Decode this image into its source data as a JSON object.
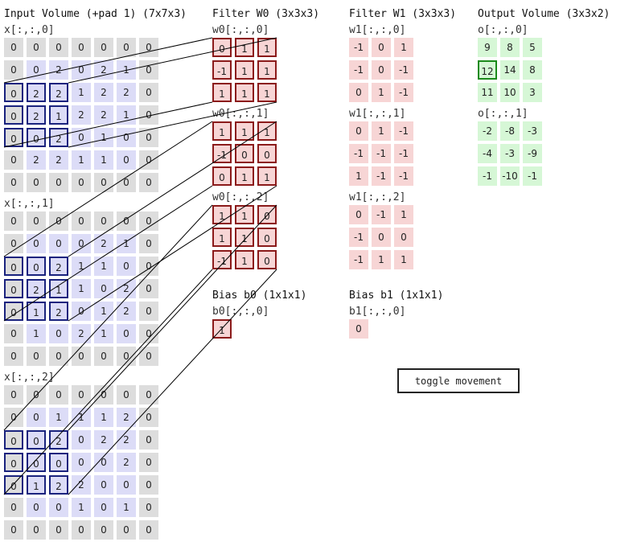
{
  "headers": {
    "input": "Input Volume (+pad 1) (7x7x3)",
    "filter0": "Filter W0 (3x3x3)",
    "filter1": "Filter W1 (3x3x3)",
    "output": "Output Volume (3x3x2)",
    "bias0": "Bias b0 (1x1x1)",
    "bias1": "Bias b1 (1x1x1)"
  },
  "input": {
    "slices": [
      {
        "label": "x[:,:,0]",
        "grid": [
          [
            0,
            0,
            0,
            0,
            0,
            0,
            0
          ],
          [
            0,
            0,
            2,
            0,
            2,
            1,
            0
          ],
          [
            0,
            2,
            2,
            1,
            2,
            2,
            0
          ],
          [
            0,
            2,
            1,
            2,
            2,
            1,
            0
          ],
          [
            0,
            0,
            2,
            0,
            1,
            0,
            0
          ],
          [
            0,
            2,
            2,
            1,
            1,
            0,
            0
          ],
          [
            0,
            0,
            0,
            0,
            0,
            0,
            0
          ]
        ]
      },
      {
        "label": "x[:,:,1]",
        "grid": [
          [
            0,
            0,
            0,
            0,
            0,
            0,
            0
          ],
          [
            0,
            0,
            0,
            0,
            2,
            1,
            0
          ],
          [
            0,
            0,
            2,
            1,
            1,
            0,
            0
          ],
          [
            0,
            2,
            1,
            1,
            0,
            2,
            0
          ],
          [
            0,
            1,
            2,
            0,
            1,
            2,
            0
          ],
          [
            0,
            1,
            0,
            2,
            1,
            0,
            0
          ],
          [
            0,
            0,
            0,
            0,
            0,
            0,
            0
          ]
        ]
      },
      {
        "label": "x[:,:,2]",
        "grid": [
          [
            0,
            0,
            0,
            0,
            0,
            0,
            0
          ],
          [
            0,
            0,
            1,
            1,
            1,
            2,
            0
          ],
          [
            0,
            0,
            2,
            0,
            2,
            2,
            0
          ],
          [
            0,
            0,
            0,
            0,
            0,
            2,
            0
          ],
          [
            0,
            1,
            2,
            2,
            0,
            0,
            0
          ],
          [
            0,
            0,
            0,
            1,
            0,
            1,
            0
          ],
          [
            0,
            0,
            0,
            0,
            0,
            0,
            0
          ]
        ]
      }
    ]
  },
  "filter0": {
    "slices": [
      {
        "label": "w0[:,:,0]",
        "grid": [
          [
            0,
            1,
            1
          ],
          [
            -1,
            1,
            1
          ],
          [
            1,
            1,
            1
          ]
        ]
      },
      {
        "label": "w0[:,:,1]",
        "grid": [
          [
            1,
            1,
            1
          ],
          [
            -1,
            0,
            0
          ],
          [
            0,
            1,
            1
          ]
        ]
      },
      {
        "label": "w0[:,:,2]",
        "grid": [
          [
            1,
            1,
            0
          ],
          [
            1,
            1,
            0
          ],
          [
            -1,
            1,
            0
          ]
        ]
      }
    ]
  },
  "filter1": {
    "slices": [
      {
        "label": "w1[:,:,0]",
        "grid": [
          [
            -1,
            0,
            1
          ],
          [
            -1,
            0,
            -1
          ],
          [
            0,
            1,
            -1
          ]
        ]
      },
      {
        "label": "w1[:,:,1]",
        "grid": [
          [
            0,
            1,
            -1
          ],
          [
            -1,
            -1,
            -1
          ],
          [
            1,
            -1,
            -1
          ]
        ]
      },
      {
        "label": "w1[:,:,2]",
        "grid": [
          [
            0,
            -1,
            1
          ],
          [
            -1,
            0,
            0
          ],
          [
            -1,
            1,
            1
          ]
        ]
      }
    ]
  },
  "bias0": {
    "label": "b0[:,:,0]",
    "value": 1
  },
  "bias1": {
    "label": "b1[:,:,0]",
    "value": 0
  },
  "output": {
    "slices": [
      {
        "label": "o[:,:,0]",
        "grid": [
          [
            9,
            8,
            5
          ],
          [
            12,
            14,
            8
          ],
          [
            11,
            10,
            3
          ]
        ]
      },
      {
        "label": "o[:,:,1]",
        "grid": [
          [
            -2,
            -8,
            -3
          ],
          [
            -4,
            -3,
            -9
          ],
          [
            -1,
            -10,
            -1
          ]
        ]
      }
    ]
  },
  "highlight": {
    "input_row": 2,
    "input_col": 0,
    "output_row": 1,
    "output_col": 0,
    "output_slice": 0
  },
  "toggle_label": "toggle movement"
}
